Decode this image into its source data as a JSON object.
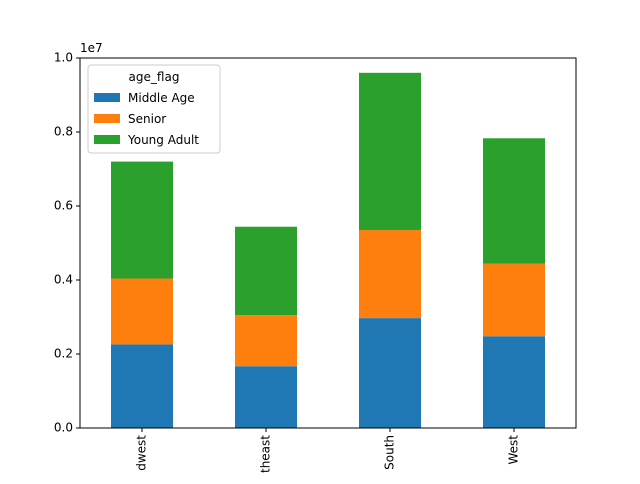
{
  "chart_data": {
    "type": "bar",
    "stacked": true,
    "categories": [
      "Midwest",
      "Northeast",
      "South",
      "West"
    ],
    "tick_labels_visible": [
      "dwest",
      "theast",
      "South",
      "West"
    ],
    "series": [
      {
        "name": "Middle Age",
        "color": "#1f77b4",
        "values": [
          2260000,
          1670000,
          2970000,
          2480000
        ]
      },
      {
        "name": "Senior",
        "color": "#ff7f0e",
        "values": [
          1780000,
          1380000,
          2380000,
          1960000
        ]
      },
      {
        "name": "Young Adult",
        "color": "#2ca02c",
        "values": [
          3160000,
          2390000,
          4250000,
          3390000
        ]
      }
    ],
    "ylim": [
      0,
      10000000
    ],
    "yticks": [
      0,
      2000000,
      4000000,
      6000000,
      8000000,
      10000000
    ],
    "ytick_labels": [
      "0.0",
      "0.2",
      "0.4",
      "0.6",
      "0.8",
      "1.0"
    ],
    "y_offset_label": "1e7",
    "legend": {
      "title": "age_flag",
      "placement": "top-left"
    },
    "title": "",
    "xlabel": "",
    "ylabel": "",
    "grid": false
  }
}
